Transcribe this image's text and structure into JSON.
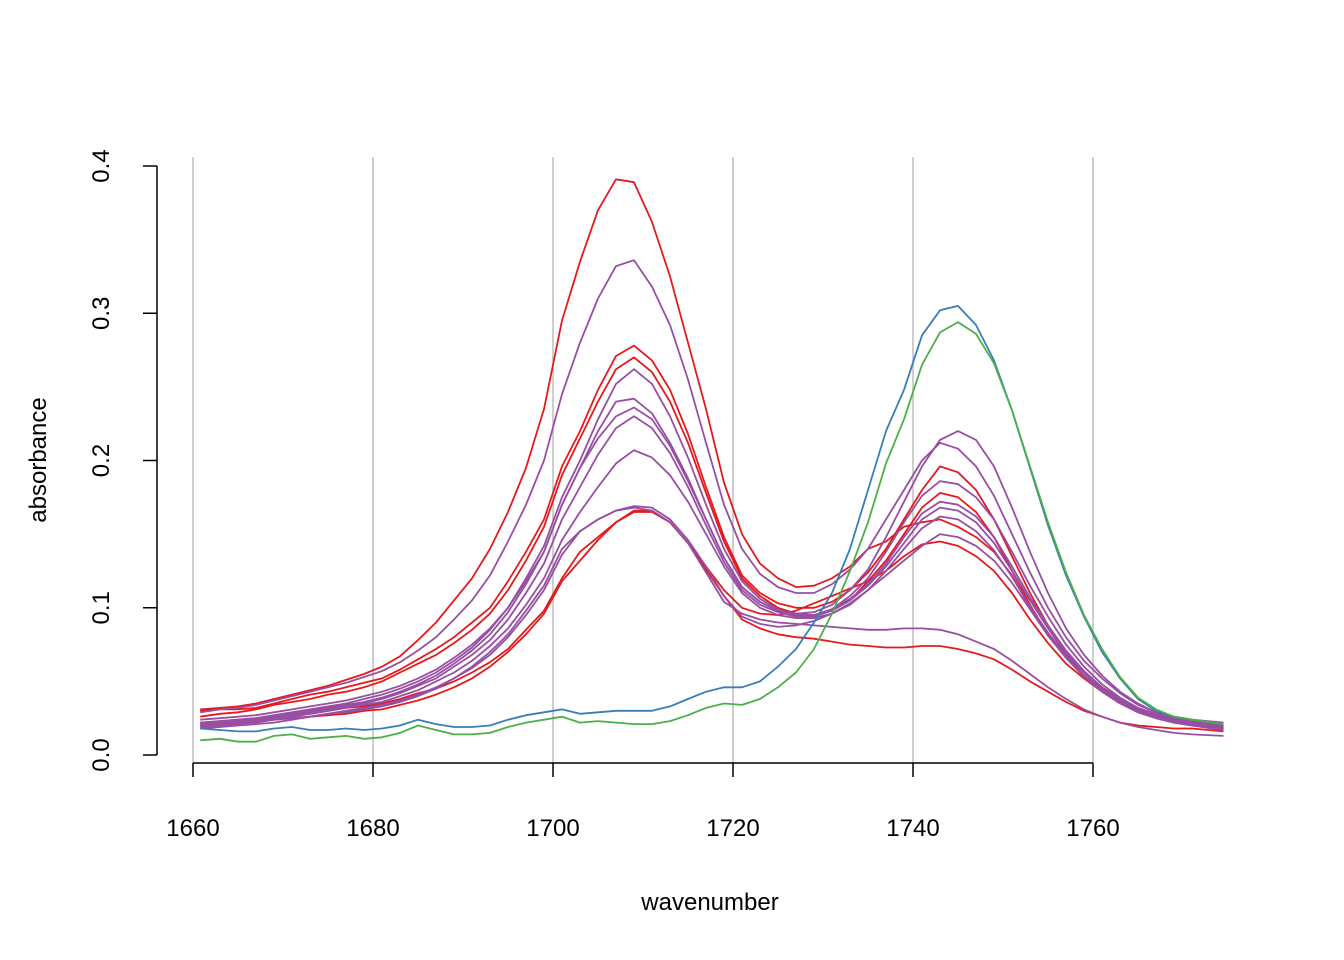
{
  "chart_data": {
    "type": "line",
    "title": "",
    "xlabel": "wavenumber",
    "ylabel": "absorbance",
    "xlim": [
      1660,
      1775
    ],
    "ylim": [
      0,
      0.4
    ],
    "x_ticks": [
      1660,
      1680,
      1700,
      1720,
      1740,
      1760
    ],
    "x_tick_labels": [
      "1660",
      "1680",
      "1700",
      "1720",
      "1740",
      "1760"
    ],
    "y_ticks": [
      0.0,
      0.1,
      0.2,
      0.3,
      0.4
    ],
    "y_tick_labels": [
      "0.0",
      "0.1",
      "0.2",
      "0.3",
      "0.4"
    ],
    "vertical_gridlines": true,
    "legend": "none",
    "colors": {
      "red": "#e41a1c",
      "purple": "#984ea3",
      "blue": "#377eb8",
      "green": "#4daf4a",
      "grid": "#bebebe"
    },
    "x": [
      1660.8,
      1663,
      1665,
      1667,
      1669,
      1671,
      1673,
      1675,
      1677,
      1679,
      1681,
      1683,
      1685,
      1687,
      1689,
      1691,
      1693,
      1695,
      1697,
      1699,
      1701,
      1703,
      1705,
      1707,
      1709,
      1711,
      1713,
      1715,
      1717,
      1719,
      1721,
      1723,
      1725,
      1727,
      1729,
      1731,
      1733,
      1735,
      1737,
      1739,
      1741,
      1743,
      1745,
      1747,
      1749,
      1751,
      1753,
      1755,
      1757,
      1759,
      1761,
      1763,
      1765,
      1767,
      1769,
      1771,
      1774.5
    ],
    "series": [
      {
        "color": "#e41a1c",
        "values": [
          0.031,
          0.032,
          0.033,
          0.035,
          0.038,
          0.041,
          0.044,
          0.047,
          0.051,
          0.055,
          0.06,
          0.067,
          0.078,
          0.09,
          0.105,
          0.12,
          0.14,
          0.165,
          0.195,
          0.235,
          0.295,
          0.335,
          0.37,
          0.391,
          0.389,
          0.362,
          0.325,
          0.28,
          0.235,
          0.185,
          0.15,
          0.13,
          0.12,
          0.114,
          0.115,
          0.12,
          0.128,
          0.14,
          0.145,
          0.155,
          0.158,
          0.16,
          0.155,
          0.148,
          0.138,
          0.122,
          0.1,
          0.083,
          0.068,
          0.056,
          0.046,
          0.038,
          0.03,
          0.026,
          0.022,
          0.021,
          0.017
        ]
      },
      {
        "color": "#e41a1c",
        "values": [
          0.03,
          0.031,
          0.031,
          0.032,
          0.035,
          0.038,
          0.041,
          0.043,
          0.046,
          0.049,
          0.052,
          0.058,
          0.065,
          0.072,
          0.08,
          0.09,
          0.1,
          0.118,
          0.138,
          0.16,
          0.196,
          0.22,
          0.248,
          0.271,
          0.278,
          0.268,
          0.248,
          0.218,
          0.182,
          0.148,
          0.122,
          0.11,
          0.103,
          0.1,
          0.1,
          0.104,
          0.112,
          0.124,
          0.14,
          0.16,
          0.18,
          0.196,
          0.192,
          0.18,
          0.16,
          0.135,
          0.11,
          0.088,
          0.07,
          0.056,
          0.045,
          0.036,
          0.03,
          0.026,
          0.023,
          0.021,
          0.019
        ]
      },
      {
        "color": "#e41a1c",
        "values": [
          0.026,
          0.028,
          0.029,
          0.031,
          0.034,
          0.036,
          0.038,
          0.041,
          0.043,
          0.046,
          0.05,
          0.056,
          0.062,
          0.068,
          0.076,
          0.085,
          0.096,
          0.112,
          0.132,
          0.155,
          0.19,
          0.215,
          0.24,
          0.262,
          0.27,
          0.26,
          0.24,
          0.212,
          0.178,
          0.145,
          0.12,
          0.108,
          0.1,
          0.096,
          0.095,
          0.098,
          0.105,
          0.118,
          0.132,
          0.15,
          0.168,
          0.178,
          0.175,
          0.165,
          0.148,
          0.125,
          0.102,
          0.082,
          0.066,
          0.054,
          0.044,
          0.036,
          0.03,
          0.026,
          0.023,
          0.022,
          0.019
        ]
      },
      {
        "color": "#e41a1c",
        "values": [
          0.022,
          0.023,
          0.024,
          0.025,
          0.026,
          0.027,
          0.028,
          0.03,
          0.032,
          0.033,
          0.035,
          0.038,
          0.042,
          0.045,
          0.05,
          0.056,
          0.063,
          0.072,
          0.085,
          0.098,
          0.12,
          0.138,
          0.148,
          0.158,
          0.165,
          0.165,
          0.158,
          0.144,
          0.128,
          0.112,
          0.1,
          0.096,
          0.095,
          0.098,
          0.103,
          0.108,
          0.113,
          0.118,
          0.125,
          0.135,
          0.143,
          0.145,
          0.142,
          0.135,
          0.125,
          0.11,
          0.092,
          0.076,
          0.062,
          0.052,
          0.043,
          0.036,
          0.03,
          0.026,
          0.023,
          0.021,
          0.018
        ]
      },
      {
        "color": "#e41a1c",
        "values": [
          0.02,
          0.021,
          0.022,
          0.023,
          0.024,
          0.025,
          0.026,
          0.027,
          0.028,
          0.03,
          0.031,
          0.034,
          0.037,
          0.041,
          0.046,
          0.052,
          0.06,
          0.07,
          0.082,
          0.096,
          0.118,
          0.132,
          0.146,
          0.158,
          0.166,
          0.166,
          0.158,
          0.144,
          0.126,
          0.108,
          0.092,
          0.086,
          0.082,
          0.08,
          0.079,
          0.077,
          0.075,
          0.074,
          0.073,
          0.073,
          0.074,
          0.074,
          0.072,
          0.069,
          0.065,
          0.058,
          0.05,
          0.043,
          0.036,
          0.03,
          0.026,
          0.022,
          0.02,
          0.019,
          0.018,
          0.018,
          0.016
        ]
      },
      {
        "color": "#984ea3",
        "values": [
          0.029,
          0.031,
          0.032,
          0.034,
          0.037,
          0.04,
          0.043,
          0.046,
          0.049,
          0.053,
          0.057,
          0.063,
          0.071,
          0.08,
          0.092,
          0.105,
          0.122,
          0.145,
          0.17,
          0.2,
          0.245,
          0.28,
          0.31,
          0.332,
          0.336,
          0.318,
          0.292,
          0.255,
          0.212,
          0.17,
          0.14,
          0.123,
          0.114,
          0.11,
          0.11,
          0.116,
          0.126,
          0.14,
          0.16,
          0.18,
          0.2,
          0.212,
          0.208,
          0.196,
          0.176,
          0.15,
          0.124,
          0.1,
          0.08,
          0.064,
          0.052,
          0.042,
          0.034,
          0.029,
          0.026,
          0.024,
          0.022
        ]
      },
      {
        "color": "#984ea3",
        "values": [
          0.024,
          0.025,
          0.026,
          0.027,
          0.029,
          0.031,
          0.033,
          0.035,
          0.037,
          0.04,
          0.043,
          0.047,
          0.052,
          0.058,
          0.066,
          0.075,
          0.086,
          0.1,
          0.118,
          0.138,
          0.17,
          0.195,
          0.22,
          0.24,
          0.242,
          0.232,
          0.212,
          0.188,
          0.16,
          0.134,
          0.114,
          0.104,
          0.098,
          0.096,
          0.097,
          0.102,
          0.112,
          0.126,
          0.148,
          0.172,
          0.196,
          0.214,
          0.22,
          0.214,
          0.196,
          0.168,
          0.138,
          0.11,
          0.086,
          0.068,
          0.054,
          0.043,
          0.035,
          0.029,
          0.025,
          0.023,
          0.02
        ]
      },
      {
        "color": "#984ea3",
        "values": [
          0.022,
          0.023,
          0.024,
          0.025,
          0.027,
          0.029,
          0.031,
          0.033,
          0.035,
          0.038,
          0.041,
          0.045,
          0.05,
          0.056,
          0.064,
          0.073,
          0.085,
          0.1,
          0.12,
          0.142,
          0.175,
          0.2,
          0.228,
          0.252,
          0.262,
          0.252,
          0.23,
          0.202,
          0.17,
          0.14,
          0.118,
          0.106,
          0.099,
          0.095,
          0.095,
          0.099,
          0.108,
          0.12,
          0.138,
          0.158,
          0.176,
          0.186,
          0.184,
          0.175,
          0.16,
          0.138,
          0.115,
          0.094,
          0.075,
          0.06,
          0.048,
          0.039,
          0.032,
          0.028,
          0.025,
          0.023,
          0.02
        ]
      },
      {
        "color": "#984ea3",
        "values": [
          0.021,
          0.022,
          0.023,
          0.024,
          0.026,
          0.028,
          0.03,
          0.032,
          0.034,
          0.036,
          0.039,
          0.043,
          0.048,
          0.054,
          0.062,
          0.071,
          0.082,
          0.097,
          0.116,
          0.138,
          0.17,
          0.195,
          0.215,
          0.23,
          0.236,
          0.228,
          0.21,
          0.186,
          0.16,
          0.134,
          0.114,
          0.104,
          0.098,
          0.095,
          0.095,
          0.099,
          0.106,
          0.116,
          0.13,
          0.148,
          0.164,
          0.172,
          0.17,
          0.162,
          0.148,
          0.128,
          0.107,
          0.088,
          0.071,
          0.057,
          0.046,
          0.038,
          0.031,
          0.027,
          0.024,
          0.022,
          0.019
        ]
      },
      {
        "color": "#984ea3",
        "values": [
          0.02,
          0.021,
          0.022,
          0.023,
          0.025,
          0.027,
          0.029,
          0.031,
          0.033,
          0.035,
          0.038,
          0.042,
          0.047,
          0.052,
          0.06,
          0.068,
          0.078,
          0.092,
          0.11,
          0.13,
          0.16,
          0.182,
          0.204,
          0.222,
          0.23,
          0.222,
          0.205,
          0.182,
          0.156,
          0.131,
          0.112,
          0.102,
          0.097,
          0.094,
          0.094,
          0.098,
          0.105,
          0.115,
          0.128,
          0.144,
          0.16,
          0.168,
          0.166,
          0.158,
          0.144,
          0.125,
          0.105,
          0.086,
          0.069,
          0.056,
          0.045,
          0.037,
          0.03,
          0.026,
          0.023,
          0.021,
          0.018
        ]
      },
      {
        "color": "#984ea3",
        "values": [
          0.019,
          0.02,
          0.021,
          0.022,
          0.024,
          0.026,
          0.028,
          0.03,
          0.032,
          0.034,
          0.036,
          0.04,
          0.044,
          0.05,
          0.056,
          0.064,
          0.074,
          0.086,
          0.102,
          0.12,
          0.146,
          0.165,
          0.182,
          0.198,
          0.207,
          0.202,
          0.19,
          0.172,
          0.15,
          0.128,
          0.11,
          0.1,
          0.095,
          0.093,
          0.093,
          0.096,
          0.102,
          0.112,
          0.125,
          0.14,
          0.154,
          0.162,
          0.16,
          0.152,
          0.139,
          0.121,
          0.101,
          0.083,
          0.067,
          0.054,
          0.044,
          0.036,
          0.029,
          0.025,
          0.022,
          0.02,
          0.017
        ]
      },
      {
        "color": "#984ea3",
        "values": [
          0.018,
          0.019,
          0.02,
          0.021,
          0.022,
          0.024,
          0.026,
          0.028,
          0.03,
          0.032,
          0.034,
          0.037,
          0.041,
          0.046,
          0.052,
          0.059,
          0.068,
          0.08,
          0.095,
          0.112,
          0.136,
          0.152,
          0.16,
          0.166,
          0.169,
          0.168,
          0.16,
          0.146,
          0.128,
          0.108,
          0.094,
          0.089,
          0.087,
          0.088,
          0.091,
          0.096,
          0.103,
          0.112,
          0.122,
          0.132,
          0.142,
          0.15,
          0.148,
          0.142,
          0.132,
          0.117,
          0.099,
          0.081,
          0.066,
          0.053,
          0.043,
          0.035,
          0.029,
          0.025,
          0.022,
          0.02,
          0.017
        ]
      },
      {
        "color": "#984ea3",
        "values": [
          0.02,
          0.021,
          0.022,
          0.023,
          0.024,
          0.025,
          0.026,
          0.028,
          0.029,
          0.031,
          0.033,
          0.036,
          0.04,
          0.045,
          0.052,
          0.06,
          0.07,
          0.082,
          0.098,
          0.115,
          0.14,
          0.152,
          0.16,
          0.166,
          0.168,
          0.166,
          0.158,
          0.144,
          0.124,
          0.104,
          0.096,
          0.092,
          0.09,
          0.089,
          0.088,
          0.087,
          0.086,
          0.085,
          0.085,
          0.086,
          0.086,
          0.085,
          0.082,
          0.077,
          0.072,
          0.064,
          0.055,
          0.046,
          0.038,
          0.031,
          0.026,
          0.022,
          0.019,
          0.017,
          0.015,
          0.014,
          0.013
        ]
      },
      {
        "color": "#377eb8",
        "values": [
          0.018,
          0.017,
          0.016,
          0.016,
          0.018,
          0.019,
          0.017,
          0.017,
          0.018,
          0.017,
          0.018,
          0.02,
          0.024,
          0.021,
          0.019,
          0.019,
          0.02,
          0.024,
          0.027,
          0.029,
          0.031,
          0.028,
          0.029,
          0.03,
          0.03,
          0.03,
          0.033,
          0.038,
          0.043,
          0.046,
          0.046,
          0.05,
          0.06,
          0.072,
          0.09,
          0.11,
          0.14,
          0.18,
          0.22,
          0.248,
          0.285,
          0.302,
          0.305,
          0.292,
          0.268,
          0.234,
          0.195,
          0.156,
          0.122,
          0.094,
          0.07,
          0.052,
          0.038,
          0.03,
          0.026,
          0.024,
          0.021
        ]
      },
      {
        "color": "#4daf4a",
        "values": [
          0.01,
          0.011,
          0.009,
          0.009,
          0.013,
          0.014,
          0.011,
          0.012,
          0.013,
          0.011,
          0.012,
          0.015,
          0.02,
          0.017,
          0.014,
          0.014,
          0.015,
          0.019,
          0.022,
          0.024,
          0.026,
          0.022,
          0.023,
          0.022,
          0.021,
          0.021,
          0.023,
          0.027,
          0.032,
          0.035,
          0.034,
          0.038,
          0.046,
          0.056,
          0.072,
          0.096,
          0.125,
          0.158,
          0.198,
          0.228,
          0.265,
          0.287,
          0.294,
          0.286,
          0.266,
          0.234,
          0.196,
          0.158,
          0.124,
          0.095,
          0.072,
          0.053,
          0.039,
          0.031,
          0.026,
          0.024,
          0.021
        ]
      }
    ]
  }
}
